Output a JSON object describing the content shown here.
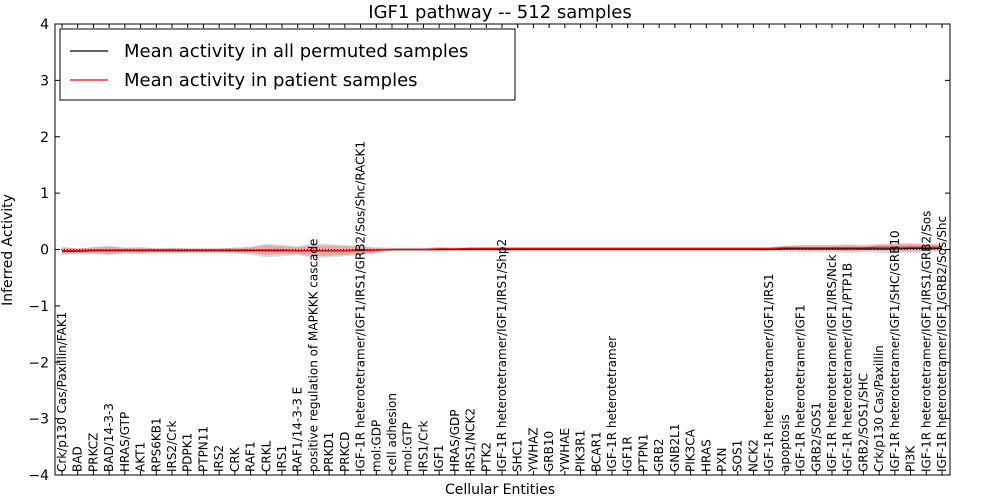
{
  "chart_data": {
    "type": "line",
    "title": "IGF1 pathway -- 512 samples",
    "xlabel": "Cellular Entities",
    "ylabel": "Inferred Activity",
    "ylim": [
      -4,
      4
    ],
    "yticks": [
      -4,
      -3,
      -2,
      -1,
      0,
      1,
      2,
      3,
      4
    ],
    "ytick_labels": [
      "−4",
      "−3",
      "−2",
      "−1",
      "0",
      "1",
      "2",
      "3",
      "4"
    ],
    "legend_position": "top-left",
    "categories": [
      "Crk/p130 Cas/Paxillin/FAK1",
      "BAD",
      "PRKCZ",
      "BAD/14-3-3",
      "HRAS/GTP",
      "AKT1",
      "RPS6KB1",
      "IRS2/Crk",
      "PDPK1",
      "PTPN11",
      "IRS2",
      "CRK",
      "RAF1",
      "CRKL",
      "IRS1",
      "RAF1/14-3-3 E",
      "positive regulation of MAPKKK cascade",
      "PRKD1",
      "PRKCD",
      "IGF-1R heterotetramer/IGF1/IRS1/GRB2/Sos/Shc/RACK1",
      "mol:GDP",
      "cell adhesion",
      "mol:GTP",
      "IRS1/Crk",
      "IGF1",
      "HRAS/GDP",
      "IRS1/NCK2",
      "PTK2",
      "IGF-1R heterotetramer/IGF1/IRS1/Shp2",
      "SHC1",
      "YWHAZ",
      "GRB10",
      "YWHAE",
      "PIK3R1",
      "BCAR1",
      "IGF-1R heterotetramer",
      "IGF1R",
      "PTPN1",
      "GRB2",
      "GNB2L1",
      "PIK3CA",
      "HRAS",
      "PXN",
      "SOS1",
      "NCK2",
      "IGF-1R heterotetramer/IGF1/IRS1",
      "apoptosis",
      "IGF-1R heterotetramer/IGF1",
      "GRB2/SOS1",
      "IGF-1R heterotetramer/IGF1/IRS/Nck",
      "IGF-1R heterotetramer/IGF1/PTP1B",
      "GRB2/SOS1/SHC",
      "Crk/p130 Cas/Paxillin",
      "IGF-1R heterotetramer/IGF1/SHC/GRB10",
      "PI3K",
      "IGF-1R heterotetramer/IGF1/IRS1/GRB2/Sos",
      "IGF-1R heterotetramer/IGF1/GRB2/Sos/Shc"
    ],
    "series": [
      {
        "name": "Mean activity in all permuted samples",
        "color": "#000000",
        "values": [
          -0.03,
          -0.03,
          -0.02,
          -0.02,
          -0.02,
          -0.02,
          -0.02,
          -0.02,
          -0.02,
          -0.02,
          -0.02,
          -0.02,
          -0.02,
          -0.02,
          -0.02,
          -0.02,
          -0.02,
          -0.02,
          -0.02,
          -0.01,
          -0.01,
          0,
          0,
          0,
          0,
          0,
          0,
          0,
          0,
          0,
          0,
          0,
          0,
          0,
          0,
          0,
          0,
          0,
          0,
          0,
          0,
          0,
          0,
          0,
          0,
          0,
          0.01,
          0.01,
          0.01,
          0.01,
          0.01,
          0.01,
          0.01,
          0.01,
          0.02,
          0.02,
          0.02
        ]
      },
      {
        "name": "Mean activity in patient samples",
        "color": "#ff0000",
        "values": [
          -0.02,
          -0.02,
          -0.01,
          -0.01,
          -0.01,
          -0.01,
          -0.01,
          -0.01,
          -0.01,
          -0.01,
          -0.01,
          -0.01,
          -0.01,
          -0.01,
          -0.01,
          -0.02,
          -0.02,
          -0.02,
          -0.02,
          -0.02,
          -0.01,
          0,
          0,
          0,
          0.01,
          0.01,
          0.02,
          0.02,
          0.02,
          0.02,
          0.02,
          0.02,
          0.02,
          0.02,
          0.02,
          0.02,
          0.02,
          0.02,
          0.02,
          0.02,
          0.02,
          0.02,
          0.02,
          0.02,
          0.02,
          0.02,
          0.03,
          0.03,
          0.03,
          0.03,
          0.03,
          0.03,
          0.04,
          0.04,
          0.04,
          0.04,
          0.04
        ]
      }
    ],
    "band_halfwidth": [
      0.06,
      0.04,
      0.05,
      0.07,
      0.04,
      0.05,
      0.03,
      0.04,
      0.03,
      0.03,
      0.03,
      0.04,
      0.05,
      0.09,
      0.07,
      0.06,
      0.1,
      0.09,
      0.08,
      0.06,
      0.04,
      0.02,
      0.02,
      0.02,
      0.03,
      0.02,
      0.02,
      0.02,
      0.02,
      0.02,
      0.02,
      0.02,
      0.02,
      0.02,
      0.02,
      0.02,
      0.02,
      0.02,
      0.02,
      0.02,
      0.02,
      0.02,
      0.02,
      0.02,
      0.02,
      0.02,
      0.04,
      0.05,
      0.05,
      0.05,
      0.06,
      0.05,
      0.06,
      0.07,
      0.07,
      0.06,
      0.05
    ],
    "grey_halfwidth": [
      0.07,
      0.05,
      0.06,
      0.08,
      0.05,
      0.06,
      0.04,
      0.05,
      0.04,
      0.04,
      0.04,
      0.05,
      0.07,
      0.12,
      0.1,
      0.08,
      0.13,
      0.12,
      0.1,
      0.08,
      0.05,
      0.03,
      0.03,
      0.03,
      0.04,
      0.03,
      0.03,
      0.03,
      0.03,
      0.03,
      0.03,
      0.03,
      0.03,
      0.03,
      0.03,
      0.03,
      0.03,
      0.03,
      0.03,
      0.03,
      0.03,
      0.03,
      0.03,
      0.03,
      0.03,
      0.03,
      0.05,
      0.06,
      0.06,
      0.06,
      0.07,
      0.06,
      0.07,
      0.08,
      0.08,
      0.07,
      0.06
    ]
  }
}
